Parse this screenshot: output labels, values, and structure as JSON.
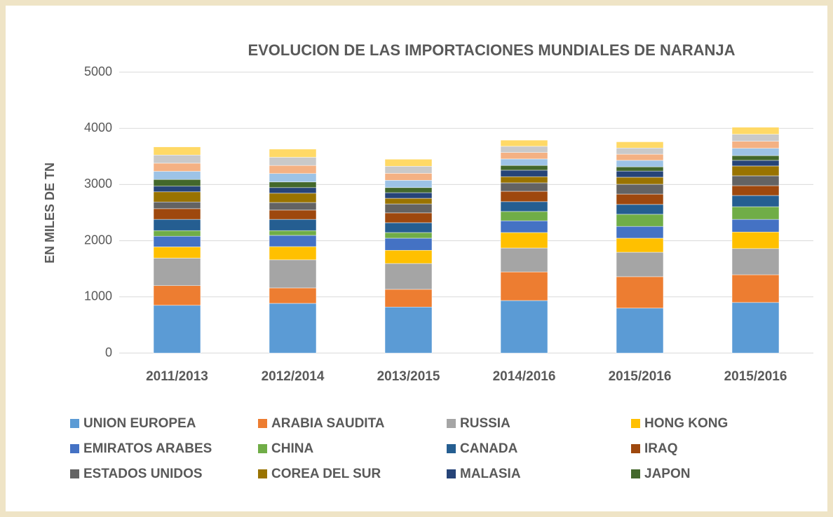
{
  "chart_data": {
    "type": "stacked_bar",
    "title": "EVOLUCION DE LAS IMPORTACIONES MUNDIALES DE NARANJA",
    "y_label": "EN MILES DE TN",
    "categories": [
      "2011/2013",
      "2012/2014",
      "2013/2015",
      "2014/2016",
      "2015/2016",
      "2015/2016"
    ],
    "ylim": [
      0,
      5000
    ],
    "yticks": [
      0,
      1000,
      2000,
      3000,
      4000,
      5000
    ],
    "grid": true,
    "legend": "bottom",
    "series": [
      {
        "name": "UNION EUROPEA",
        "color": "#5b9bd5",
        "values": [
          850,
          885,
          820,
          935,
          800,
          900
        ]
      },
      {
        "name": "ARABIA SAUDITA",
        "color": "#ed7d31",
        "values": [
          350,
          275,
          315,
          510,
          560,
          495
        ]
      },
      {
        "name": "RUSSIA",
        "color": "#a5a5a5",
        "values": [
          490,
          500,
          460,
          425,
          435,
          465
        ]
      },
      {
        "name": "HONG KONG",
        "color": "#ffc000",
        "values": [
          200,
          235,
          235,
          275,
          250,
          295
        ]
      },
      {
        "name": "EMIRATOS ARABES",
        "color": "#4472c4",
        "values": [
          190,
          200,
          215,
          210,
          210,
          225
        ]
      },
      {
        "name": "CHINA",
        "color": "#70ad47",
        "values": [
          100,
          85,
          100,
          165,
          215,
          225
        ]
      },
      {
        "name": "CANADA",
        "color": "#255e91",
        "values": [
          200,
          200,
          175,
          175,
          175,
          200
        ]
      },
      {
        "name": "IRAQ",
        "color": "#9e480e",
        "values": [
          190,
          165,
          175,
          185,
          185,
          175
        ]
      },
      {
        "name": "ESTADOS UNIDOS",
        "color": "#636363",
        "values": [
          120,
          135,
          160,
          150,
          175,
          175
        ]
      },
      {
        "name": "COREA DEL SUR",
        "color": "#997300",
        "values": [
          180,
          165,
          100,
          110,
          125,
          175
        ]
      },
      {
        "name": "MALASIA",
        "color": "#264478",
        "values": [
          100,
          100,
          100,
          115,
          110,
          100
        ]
      },
      {
        "name": "JAPON",
        "color": "#43682b",
        "values": [
          120,
          100,
          90,
          85,
          75,
          85
        ]
      },
      {
        "name": null,
        "color": "#9dc3e6",
        "values": [
          145,
          150,
          130,
          115,
          115,
          130
        ]
      },
      {
        "name": null,
        "color": "#f4b183",
        "values": [
          145,
          145,
          125,
          115,
          110,
          125
        ]
      },
      {
        "name": null,
        "color": "#c9c9c9",
        "values": [
          145,
          145,
          125,
          110,
          110,
          125
        ]
      },
      {
        "name": null,
        "color": "#ffd966",
        "values": [
          145,
          145,
          125,
          110,
          110,
          125
        ]
      }
    ]
  }
}
